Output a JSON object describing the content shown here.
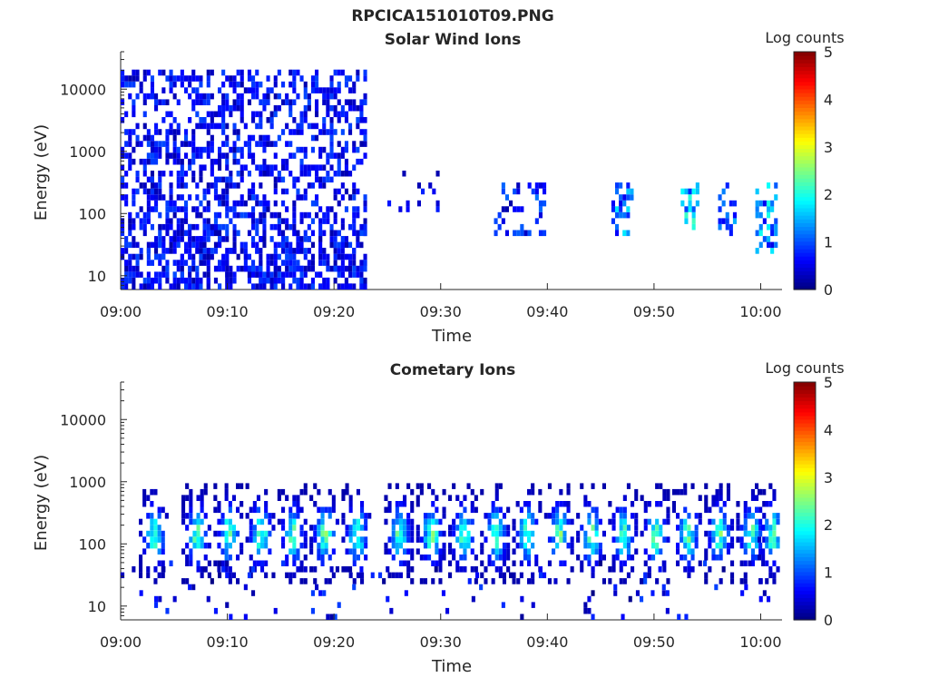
{
  "figure_title": "RPCICA151010T09.PNG",
  "chart_data": [
    {
      "type": "heatmap",
      "title": "Solar Wind Ions",
      "xlabel": "Time",
      "ylabel": "Energy (eV)",
      "y_scale": "log",
      "ylim": [
        6,
        40000
      ],
      "x_ticks": [
        "09:00",
        "09:10",
        "09:20",
        "09:30",
        "09:40",
        "09:50",
        "10:00"
      ],
      "x_range_minutes": [
        0,
        62
      ],
      "y_ticks": [
        10,
        100,
        1000,
        10000
      ],
      "y_tick_labels": [
        "10",
        "100",
        "1000",
        "10000"
      ],
      "colorbar": {
        "label": "Log counts",
        "range": [
          0,
          5
        ],
        "ticks": [
          "0",
          "1",
          "2",
          "3",
          "4",
          "5"
        ],
        "colormap": "jet"
      },
      "regions": [
        {
          "t": [
            0,
            23
          ],
          "e": [
            6,
            20000
          ],
          "level": [
            0.2,
            1.0
          ],
          "density": 0.45
        },
        {
          "t": [
            0,
            23
          ],
          "e": [
            6,
            60
          ],
          "level": [
            0.2,
            1.0
          ],
          "density": 0.25
        },
        {
          "t": [
            25,
            30
          ],
          "e": [
            100,
            400
          ],
          "level": [
            0.2,
            0.9
          ],
          "density": 0.15
        },
        {
          "t": [
            35,
            40
          ],
          "e": [
            40,
            300
          ],
          "level": [
            0.2,
            1.2
          ],
          "density": 0.25
        },
        {
          "t": [
            46,
            48
          ],
          "e": [
            40,
            300
          ],
          "level": [
            0.5,
            1.8
          ],
          "density": 0.4
        },
        {
          "t": [
            52.5,
            54
          ],
          "e": [
            40,
            300
          ],
          "level": [
            0.8,
            2.2
          ],
          "density": 0.5
        },
        {
          "t": [
            56,
            57.5
          ],
          "e": [
            40,
            300
          ],
          "level": [
            0.5,
            1.5
          ],
          "density": 0.4
        },
        {
          "t": [
            59.5,
            61.5
          ],
          "e": [
            20,
            300
          ],
          "level": [
            0.5,
            2.0
          ],
          "density": 0.4
        }
      ]
    },
    {
      "type": "heatmap",
      "title": "Cometary Ions",
      "xlabel": "Time",
      "ylabel": "Energy (eV)",
      "y_scale": "log",
      "ylim": [
        6,
        40000
      ],
      "x_ticks": [
        "09:00",
        "09:10",
        "09:20",
        "09:30",
        "09:40",
        "09:50",
        "10:00"
      ],
      "x_range_minutes": [
        0,
        62
      ],
      "y_ticks": [
        10,
        100,
        1000,
        10000
      ],
      "y_tick_labels": [
        "10",
        "100",
        "1000",
        "10000"
      ],
      "colorbar": {
        "label": "Log counts",
        "range": [
          0,
          5
        ],
        "ticks": [
          "0",
          "1",
          "2",
          "3",
          "4",
          "5"
        ],
        "colormap": "jet"
      },
      "bursts_center_minutes": [
        3,
        7,
        10,
        13,
        16,
        19,
        22,
        26,
        29,
        32,
        35,
        38,
        41,
        44,
        47,
        50,
        53,
        56,
        59,
        61
      ],
      "bursts_energy_range_ev": [
        20,
        800
      ],
      "bursts_level_max": 2.5,
      "background_level_max": 1.0
    }
  ]
}
